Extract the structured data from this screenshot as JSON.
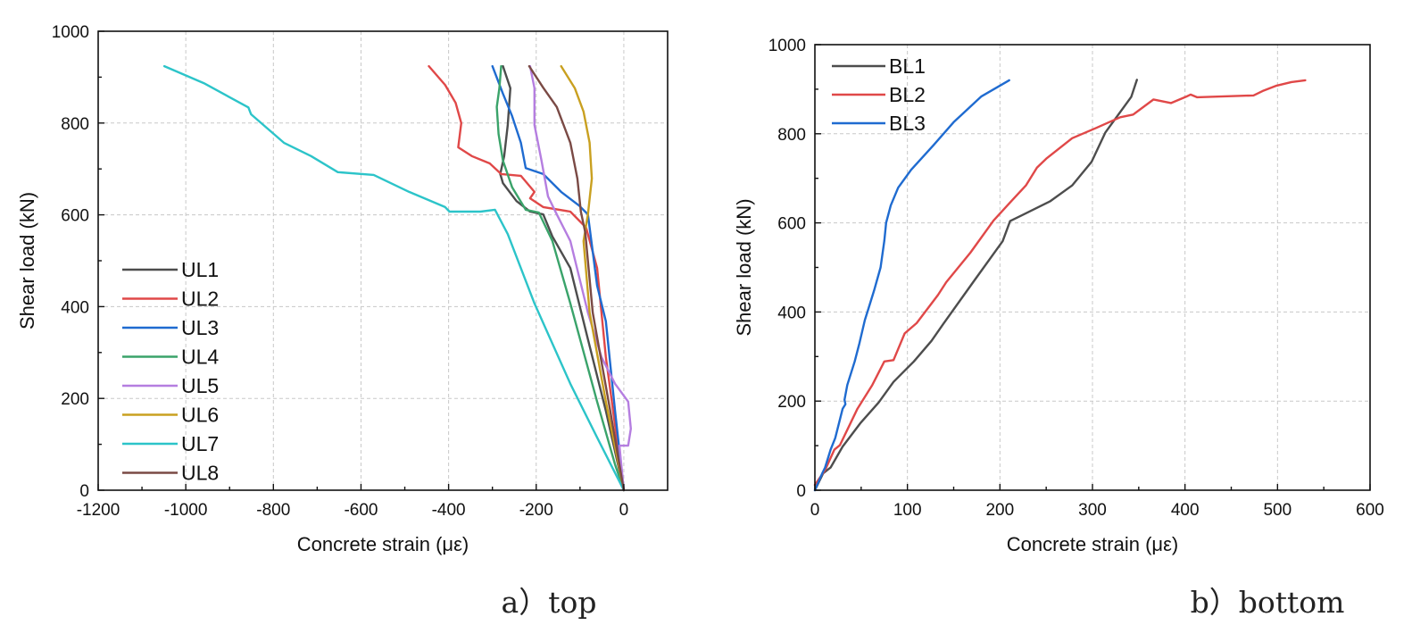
{
  "chart_data": [
    {
      "id": "top",
      "type": "line",
      "caption": "a）top",
      "title": "",
      "xlabel": "Concrete strain (με)",
      "ylabel": "Shear load (kN)",
      "xlim": [
        -1200,
        100
      ],
      "ylim": [
        0,
        1000
      ],
      "xticks": [
        -1200,
        -1000,
        -800,
        -600,
        -400,
        -200,
        0
      ],
      "yticks": [
        0,
        200,
        400,
        600,
        800,
        1000
      ],
      "grid": true,
      "legend_position": "bottom-left",
      "series": [
        {
          "name": "UL1",
          "color": "#4d4d4d",
          "points": [
            [
              0,
              0
            ],
            [
              -41,
              173
            ],
            [
              -82,
              329
            ],
            [
              -122,
              484
            ],
            [
              -163,
              553
            ],
            [
              -184,
              601
            ],
            [
              -214,
              607
            ],
            [
              -245,
              630
            ],
            [
              -276,
              669
            ],
            [
              -282,
              689
            ],
            [
              -273,
              728
            ],
            [
              -265,
              796
            ],
            [
              -259,
              876
            ],
            [
              -276,
              924
            ]
          ]
        },
        {
          "name": "UL2",
          "color": "#e04848",
          "points": [
            [
              0,
              0
            ],
            [
              -41,
              290
            ],
            [
              -61,
              484
            ],
            [
              -86,
              572
            ],
            [
              -122,
              607
            ],
            [
              -184,
              617
            ],
            [
              -214,
              636
            ],
            [
              -204,
              650
            ],
            [
              -235,
              685
            ],
            [
              -280,
              689
            ],
            [
              -306,
              712
            ],
            [
              -347,
              728
            ],
            [
              -378,
              747
            ],
            [
              -371,
              800
            ],
            [
              -384,
              844
            ],
            [
              -408,
              883
            ],
            [
              -445,
              924
            ]
          ]
        },
        {
          "name": "UL3",
          "color": "#1f6bd0",
          "points": [
            [
              0,
              0
            ],
            [
              -20,
              173
            ],
            [
              -41,
              368
            ],
            [
              -61,
              446
            ],
            [
              -82,
              601
            ],
            [
              -102,
              620
            ],
            [
              -143,
              650
            ],
            [
              -184,
              689
            ],
            [
              -224,
              702
            ],
            [
              -235,
              757
            ],
            [
              -255,
              815
            ],
            [
              -276,
              864
            ],
            [
              -300,
              924
            ]
          ]
        },
        {
          "name": "UL4",
          "color": "#3aa36a",
          "points": [
            [
              0,
              0
            ],
            [
              -20,
              56
            ],
            [
              -61,
              193
            ],
            [
              -122,
              407
            ],
            [
              -163,
              543
            ],
            [
              -194,
              605
            ],
            [
              -224,
              611
            ],
            [
              -255,
              660
            ],
            [
              -276,
              718
            ],
            [
              -286,
              776
            ],
            [
              -290,
              835
            ],
            [
              -284,
              876
            ],
            [
              -280,
              924
            ]
          ]
        },
        {
          "name": "UL5",
          "color": "#b57ee0",
          "points": [
            [
              0,
              0
            ],
            [
              -10,
              97
            ],
            [
              10,
              97
            ],
            [
              16,
              134
            ],
            [
              10,
              193
            ],
            [
              -20,
              232
            ],
            [
              -51,
              290
            ],
            [
              -82,
              387
            ],
            [
              -122,
              543
            ],
            [
              -153,
              601
            ],
            [
              -173,
              640
            ],
            [
              -188,
              718
            ],
            [
              -204,
              796
            ],
            [
              -204,
              876
            ],
            [
              -214,
              924
            ]
          ]
        },
        {
          "name": "UL6",
          "color": "#c9a020",
          "points": [
            [
              0,
              0
            ],
            [
              -41,
              193
            ],
            [
              -78,
              387
            ],
            [
              -92,
              543
            ],
            [
              -82,
              601
            ],
            [
              -73,
              679
            ],
            [
              -78,
              757
            ],
            [
              -92,
              825
            ],
            [
              -112,
              876
            ],
            [
              -143,
              924
            ]
          ]
        },
        {
          "name": "UL7",
          "color": "#2cc4c9",
          "points": [
            [
              0,
              0
            ],
            [
              -61,
              115
            ],
            [
              -122,
              232
            ],
            [
              -204,
              407
            ],
            [
              -265,
              558
            ],
            [
              -294,
              611
            ],
            [
              -327,
              607
            ],
            [
              -398,
              607
            ],
            [
              -408,
              617
            ],
            [
              -490,
              650
            ],
            [
              -571,
              687
            ],
            [
              -653,
              693
            ],
            [
              -714,
              728
            ],
            [
              -776,
              757
            ],
            [
              -851,
              819
            ],
            [
              -857,
              834
            ],
            [
              -959,
              887
            ],
            [
              -1049,
              924
            ]
          ]
        },
        {
          "name": "UL8",
          "color": "#7a4a45",
          "points": [
            [
              0,
              0
            ],
            [
              -31,
              173
            ],
            [
              -71,
              387
            ],
            [
              -88,
              562
            ],
            [
              -98,
              607
            ],
            [
              -106,
              679
            ],
            [
              -122,
              757
            ],
            [
              -153,
              835
            ],
            [
              -184,
              877
            ],
            [
              -216,
              924
            ]
          ]
        }
      ]
    },
    {
      "id": "bottom",
      "type": "line",
      "caption": "b）bottom",
      "title": "",
      "xlabel": "Concrete strain (με)",
      "ylabel": "Shear load (kN)",
      "xlim": [
        0,
        600
      ],
      "ylim": [
        0,
        1000
      ],
      "xticks": [
        0,
        100,
        200,
        300,
        400,
        500,
        600
      ],
      "yticks": [
        0,
        200,
        400,
        600,
        800,
        1000
      ],
      "grid": true,
      "legend_position": "top-left",
      "series": [
        {
          "name": "BL1",
          "color": "#4d4d4d",
          "points": [
            [
              0,
              0
            ],
            [
              9,
              38
            ],
            [
              17,
              51
            ],
            [
              30,
              98
            ],
            [
              49,
              150
            ],
            [
              69,
              197
            ],
            [
              85,
              243
            ],
            [
              107,
              289
            ],
            [
              126,
              335
            ],
            [
              139,
              374
            ],
            [
              171,
              467
            ],
            [
              203,
              559
            ],
            [
              211,
              604
            ],
            [
              254,
              648
            ],
            [
              278,
              684
            ],
            [
              299,
              737
            ],
            [
              314,
              803
            ],
            [
              342,
              883
            ],
            [
              348,
              921
            ]
          ]
        },
        {
          "name": "BL2",
          "color": "#e04848",
          "points": [
            [
              0,
              12
            ],
            [
              11,
              45
            ],
            [
              21,
              91
            ],
            [
              27,
              101
            ],
            [
              46,
              183
            ],
            [
              62,
              236
            ],
            [
              75,
              289
            ],
            [
              85,
              292
            ],
            [
              97,
              352
            ],
            [
              110,
              375
            ],
            [
              133,
              438
            ],
            [
              142,
              467
            ],
            [
              168,
              533
            ],
            [
              193,
              605
            ],
            [
              212,
              648
            ],
            [
              228,
              684
            ],
            [
              240,
              724
            ],
            [
              250,
              744
            ],
            [
              278,
              790
            ],
            [
              304,
              813
            ],
            [
              330,
              837
            ],
            [
              344,
              843
            ],
            [
              366,
              877
            ],
            [
              385,
              869
            ],
            [
              401,
              883
            ],
            [
              406,
              888
            ],
            [
              413,
              882
            ],
            [
              474,
              886
            ],
            [
              484,
              896
            ],
            [
              499,
              908
            ],
            [
              515,
              916
            ],
            [
              530,
              920
            ]
          ]
        },
        {
          "name": "BL3",
          "color": "#1f6bd0",
          "points": [
            [
              0,
              0
            ],
            [
              8,
              38
            ],
            [
              11,
              51
            ],
            [
              17,
              91
            ],
            [
              22,
              117
            ],
            [
              30,
              183
            ],
            [
              33,
              193
            ],
            [
              32,
              203
            ],
            [
              35,
              236
            ],
            [
              43,
              289
            ],
            [
              48,
              329
            ],
            [
              54,
              382
            ],
            [
              58,
              408
            ],
            [
              64,
              448
            ],
            [
              71,
              500
            ],
            [
              75,
              560
            ],
            [
              77,
              600
            ],
            [
              82,
              639
            ],
            [
              90,
              679
            ],
            [
              104,
              719
            ],
            [
              128,
              774
            ],
            [
              150,
              826
            ],
            [
              180,
              884
            ],
            [
              210,
              920
            ]
          ]
        }
      ]
    }
  ]
}
